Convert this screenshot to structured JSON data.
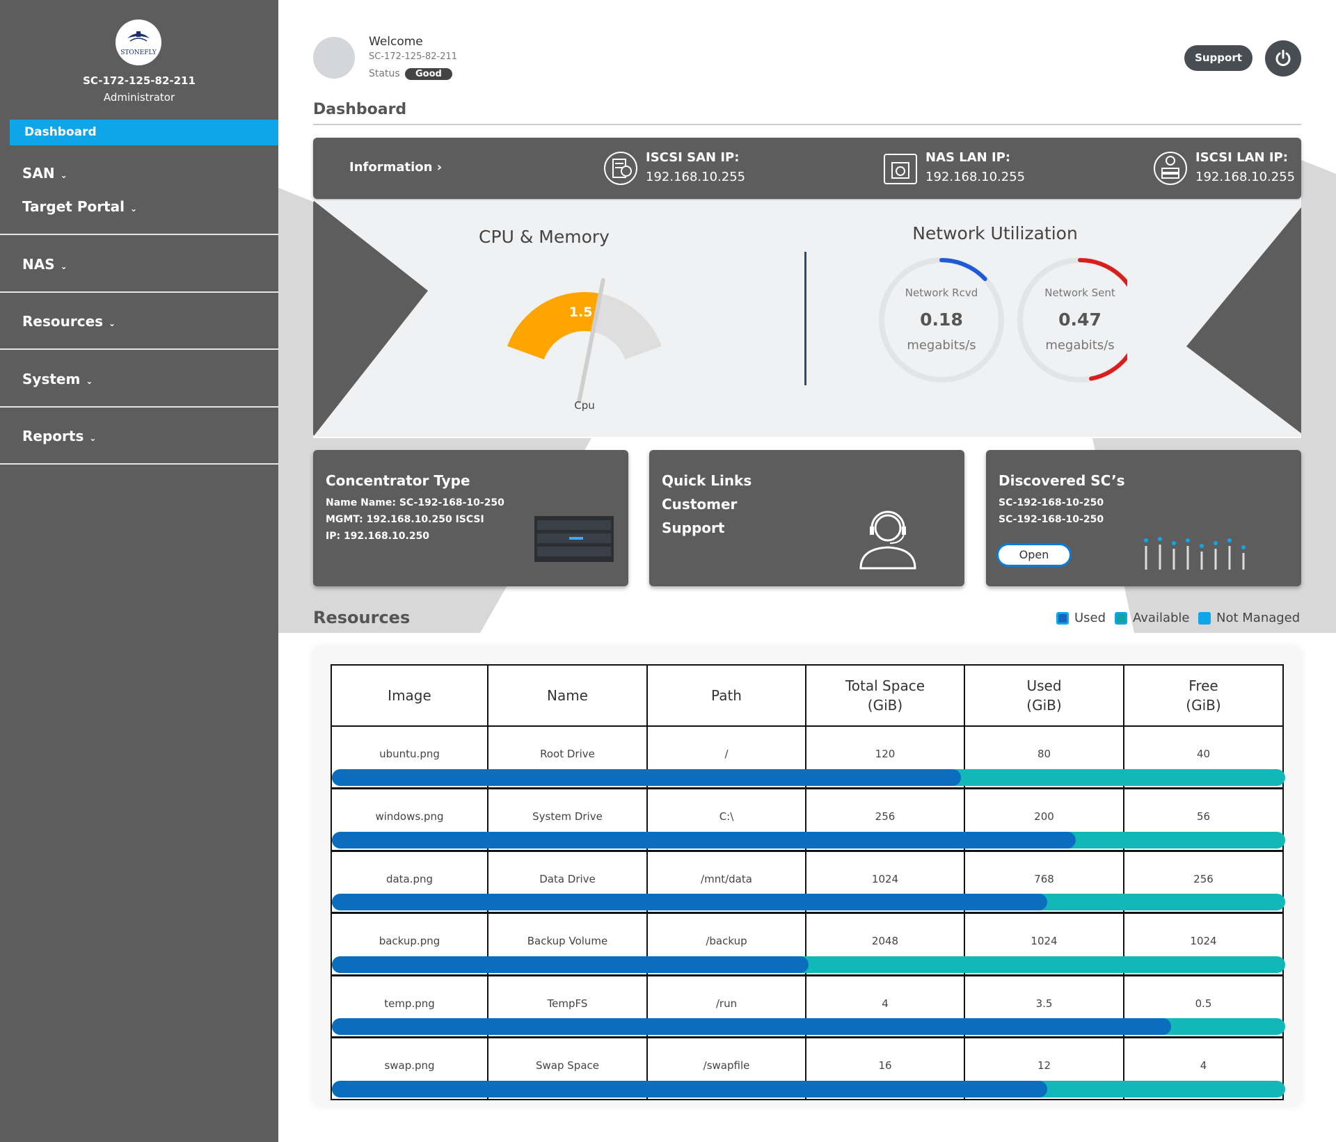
{
  "sidebar": {
    "logo_text": "STONEFLY",
    "hostname": "SC-172-125-82-211",
    "role": "Administrator",
    "active_item": "Dashboard",
    "items": [
      {
        "label": "SAN"
      },
      {
        "label": "Target Portal"
      },
      {
        "label": "NAS"
      },
      {
        "label": "Resources"
      },
      {
        "label": "System"
      },
      {
        "label": "Reports"
      }
    ]
  },
  "header": {
    "welcome": "Welcome",
    "hostname": "SC-172-125-82-211",
    "status_label": "Status",
    "status_value": "Good",
    "support_label": "Support",
    "page_title": "Dashboard"
  },
  "info_bar": {
    "information_label": "Information",
    "iscsi_san": {
      "title": "ISCSI SAN IP:",
      "value": "192.168.10.255"
    },
    "nas_lan": {
      "title": "NAS LAN IP:",
      "value": "192.168.10.255"
    },
    "iscsi_lan": {
      "title": "ISCSI LAN IP:",
      "value": "192.168.10.255"
    }
  },
  "cpu_memory": {
    "title": "CPU & Memory",
    "gauge_label": "Cpu",
    "cpu_value": "1.5",
    "cpu_fraction": 0.58
  },
  "network": {
    "title": "Network Utilization",
    "rcvd": {
      "label": "Network Rcvd",
      "value": "0.18",
      "unit": "megabits/s",
      "fraction": 0.13
    },
    "sent": {
      "label": "Network Sent",
      "value": "0.47",
      "unit": "megabits/s",
      "fraction": 0.47
    }
  },
  "cards": {
    "concentrator": {
      "title": "Concentrator Type",
      "line1": "Name Name: SC-192-168-10-250",
      "line2": "MGMT: 192.168.10.250 ISCSI",
      "line3": "IP: 192.168.10.250"
    },
    "quick_links": {
      "line1": "Quick Links",
      "line2": "Customer",
      "line3": "Support"
    },
    "discovered": {
      "title": "Discovered SC’s",
      "line1": "SC-192-168-10-250",
      "line2": "SC-192-168-10-250",
      "open_label": "Open"
    }
  },
  "resources": {
    "title": "Resources",
    "legend": [
      {
        "label": "Used",
        "color": "#1565c0"
      },
      {
        "label": "Available",
        "color": "#12b8b8"
      },
      {
        "label": "Not Managed",
        "color": "#0ea5e9"
      }
    ],
    "columns": [
      "Image",
      "Name",
      "Path",
      "Total Space\n(GiB)",
      "Used\n(GiB)",
      "Free\n(GiB)"
    ],
    "rows": [
      {
        "image": "ubuntu.png",
        "name": "Root Drive",
        "path": "/",
        "total": "120",
        "used": "80",
        "free": "40",
        "used_fraction": 0.66
      },
      {
        "image": "windows.png",
        "name": "System Drive",
        "path": "C:\\",
        "total": "256",
        "used": "200",
        "free": "56",
        "used_fraction": 0.78
      },
      {
        "image": "data.png",
        "name": "Data Drive",
        "path": "/mnt/data",
        "total": "1024",
        "used": "768",
        "free": "256",
        "used_fraction": 0.75
      },
      {
        "image": "backup.png",
        "name": "Backup Volume",
        "path": "/backup",
        "total": "2048",
        "used": "1024",
        "free": "1024",
        "used_fraction": 0.5
      },
      {
        "image": "temp.png",
        "name": "TempFS",
        "path": "/run",
        "total": "4",
        "used": "3.5",
        "free": "0.5",
        "used_fraction": 0.88
      },
      {
        "image": "swap.png",
        "name": "Swap Space",
        "path": "/swapfile",
        "total": "16",
        "used": "12",
        "free": "4",
        "used_fraction": 0.75
      }
    ]
  },
  "colors": {
    "sidebar": "#5d5d5d",
    "accent": "#0ea5e9",
    "used": "#0b6dbd",
    "available": "#12b8b8",
    "cpu": "#ffa500",
    "rcvd": "#1e5bd6",
    "sent": "#d91e1e"
  }
}
